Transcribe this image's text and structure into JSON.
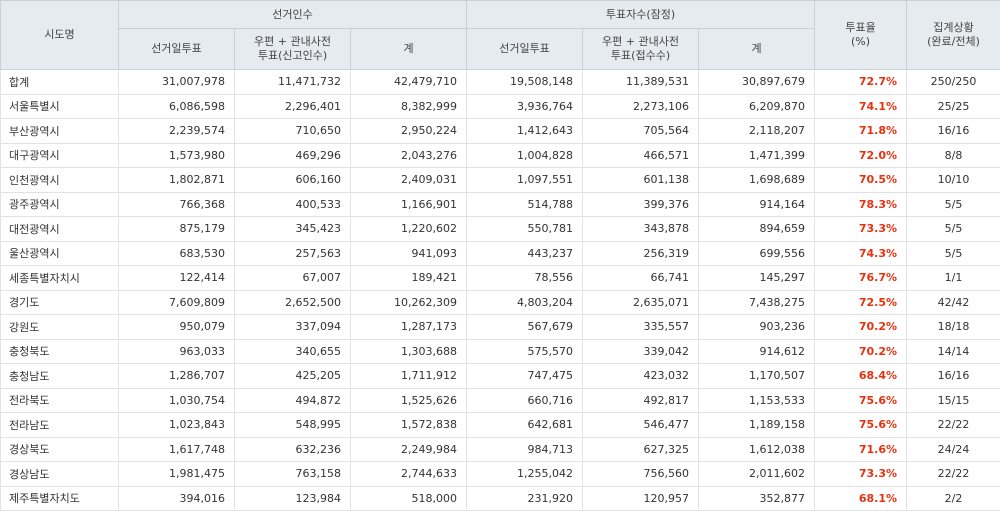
{
  "header": {
    "region": "시도명",
    "electorate_group": "선거인수",
    "voters_group": "투표자수(잠정)",
    "rate": "투표율\n(%)",
    "status": "집계상황\n(완료/전체)",
    "sub": {
      "e_election_day": "선거일투표",
      "e_postal": "우편 + 관내사전\n투표(신고인수)",
      "e_total": "계",
      "v_election_day": "선거일투표",
      "v_postal": "우편 + 관내사전\n투표(접수수)",
      "v_total": "계"
    }
  },
  "rows": [
    {
      "name": "합계",
      "e1": "31,007,978",
      "e2": "11,471,732",
      "e3": "42,479,710",
      "v1": "19,508,148",
      "v2": "11,389,531",
      "v3": "30,897,679",
      "rate": "72.7%",
      "status": "250/250"
    },
    {
      "name": "서울특별시",
      "e1": "6,086,598",
      "e2": "2,296,401",
      "e3": "8,382,999",
      "v1": "3,936,764",
      "v2": "2,273,106",
      "v3": "6,209,870",
      "rate": "74.1%",
      "status": "25/25"
    },
    {
      "name": "부산광역시",
      "e1": "2,239,574",
      "e2": "710,650",
      "e3": "2,950,224",
      "v1": "1,412,643",
      "v2": "705,564",
      "v3": "2,118,207",
      "rate": "71.8%",
      "status": "16/16"
    },
    {
      "name": "대구광역시",
      "e1": "1,573,980",
      "e2": "469,296",
      "e3": "2,043,276",
      "v1": "1,004,828",
      "v2": "466,571",
      "v3": "1,471,399",
      "rate": "72.0%",
      "status": "8/8"
    },
    {
      "name": "인천광역시",
      "e1": "1,802,871",
      "e2": "606,160",
      "e3": "2,409,031",
      "v1": "1,097,551",
      "v2": "601,138",
      "v3": "1,698,689",
      "rate": "70.5%",
      "status": "10/10"
    },
    {
      "name": "광주광역시",
      "e1": "766,368",
      "e2": "400,533",
      "e3": "1,166,901",
      "v1": "514,788",
      "v2": "399,376",
      "v3": "914,164",
      "rate": "78.3%",
      "status": "5/5"
    },
    {
      "name": "대전광역시",
      "e1": "875,179",
      "e2": "345,423",
      "e3": "1,220,602",
      "v1": "550,781",
      "v2": "343,878",
      "v3": "894,659",
      "rate": "73.3%",
      "status": "5/5"
    },
    {
      "name": "울산광역시",
      "e1": "683,530",
      "e2": "257,563",
      "e3": "941,093",
      "v1": "443,237",
      "v2": "256,319",
      "v3": "699,556",
      "rate": "74.3%",
      "status": "5/5"
    },
    {
      "name": "세종특별자치시",
      "e1": "122,414",
      "e2": "67,007",
      "e3": "189,421",
      "v1": "78,556",
      "v2": "66,741",
      "v3": "145,297",
      "rate": "76.7%",
      "status": "1/1"
    },
    {
      "name": "경기도",
      "e1": "7,609,809",
      "e2": "2,652,500",
      "e3": "10,262,309",
      "v1": "4,803,204",
      "v2": "2,635,071",
      "v3": "7,438,275",
      "rate": "72.5%",
      "status": "42/42"
    },
    {
      "name": "강원도",
      "e1": "950,079",
      "e2": "337,094",
      "e3": "1,287,173",
      "v1": "567,679",
      "v2": "335,557",
      "v3": "903,236",
      "rate": "70.2%",
      "status": "18/18"
    },
    {
      "name": "충청북도",
      "e1": "963,033",
      "e2": "340,655",
      "e3": "1,303,688",
      "v1": "575,570",
      "v2": "339,042",
      "v3": "914,612",
      "rate": "70.2%",
      "status": "14/14"
    },
    {
      "name": "충청남도",
      "e1": "1,286,707",
      "e2": "425,205",
      "e3": "1,711,912",
      "v1": "747,475",
      "v2": "423,032",
      "v3": "1,170,507",
      "rate": "68.4%",
      "status": "16/16"
    },
    {
      "name": "전라북도",
      "e1": "1,030,754",
      "e2": "494,872",
      "e3": "1,525,626",
      "v1": "660,716",
      "v2": "492,817",
      "v3": "1,153,533",
      "rate": "75.6%",
      "status": "15/15"
    },
    {
      "name": "전라남도",
      "e1": "1,023,843",
      "e2": "548,995",
      "e3": "1,572,838",
      "v1": "642,681",
      "v2": "546,477",
      "v3": "1,189,158",
      "rate": "75.6%",
      "status": "22/22"
    },
    {
      "name": "경상북도",
      "e1": "1,617,748",
      "e2": "632,236",
      "e3": "2,249,984",
      "v1": "984,713",
      "v2": "627,325",
      "v3": "1,612,038",
      "rate": "71.6%",
      "status": "24/24"
    },
    {
      "name": "경상남도",
      "e1": "1,981,475",
      "e2": "763,158",
      "e3": "2,744,633",
      "v1": "1,255,042",
      "v2": "756,560",
      "v3": "2,011,602",
      "rate": "73.3%",
      "status": "22/22"
    },
    {
      "name": "제주특별자치도",
      "e1": "394,016",
      "e2": "123,984",
      "e3": "518,000",
      "v1": "231,920",
      "v2": "120,957",
      "v3": "352,877",
      "rate": "68.1%",
      "status": "2/2"
    }
  ],
  "colors": {
    "header_bg": "#e6ebf0",
    "rate_text": "#e8320f",
    "border": "#e2e2e2"
  }
}
